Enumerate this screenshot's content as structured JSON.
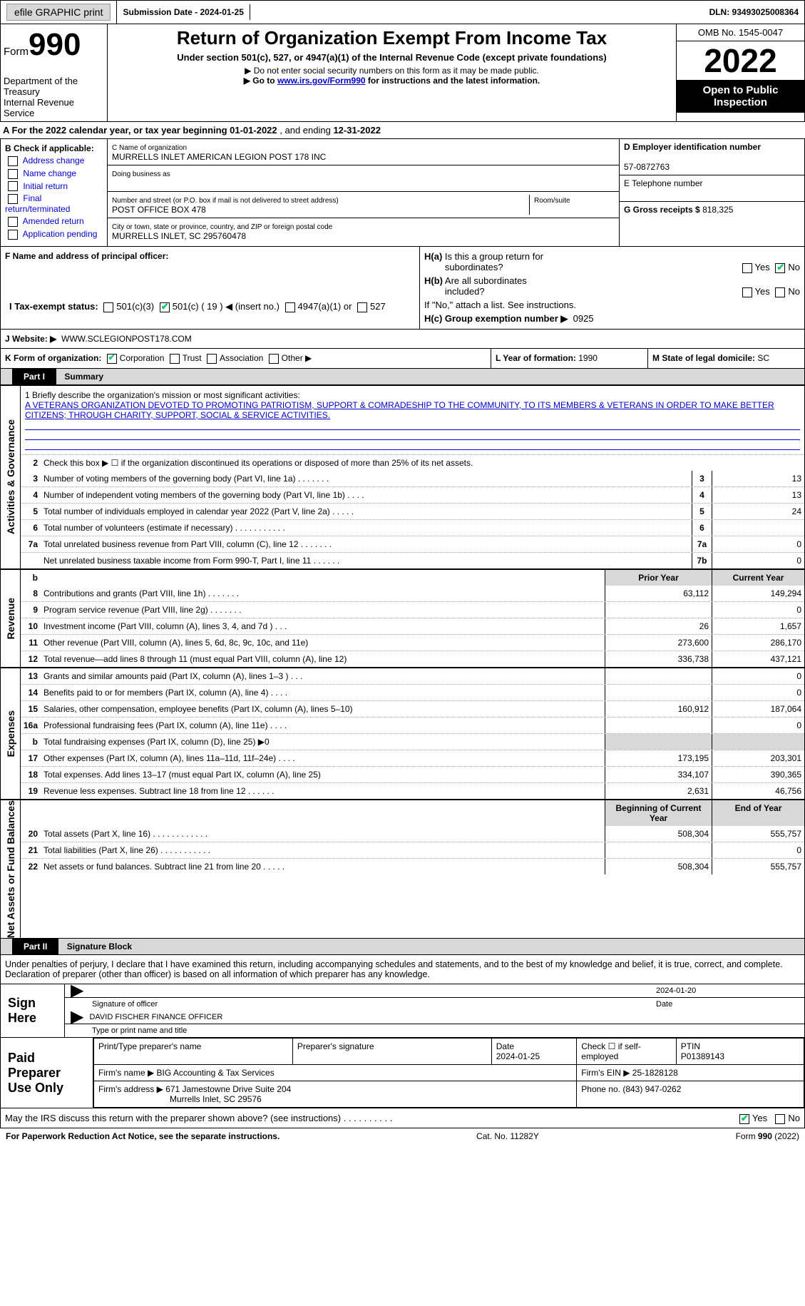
{
  "topbar": {
    "efile_label": "efile GRAPHIC print",
    "submission_label": "Submission Date - 2024-01-25",
    "dln": "DLN: 93493025008364"
  },
  "header": {
    "form_word": "Form",
    "form_number": "990",
    "dept": "Department of the Treasury",
    "agency": "Internal Revenue Service",
    "title": "Return of Organization Exempt From Income Tax",
    "subtitle": "Under section 501(c), 527, or 4947(a)(1) of the Internal Revenue Code (except private foundations)",
    "note1": "▶ Do not enter social security numbers on this form as it may be made public.",
    "note2_pre": "▶ Go to ",
    "note2_link": "www.irs.gov/Form990",
    "note2_post": " for instructions and the latest information.",
    "omb": "OMB No. 1545-0047",
    "year": "2022",
    "open1": "Open to Public",
    "open2": "Inspection"
  },
  "sectionA": {
    "text_pre": "A For the 2022 calendar year, or tax year beginning ",
    "begin": "01-01-2022",
    "mid": " , and ending ",
    "end": "12-31-2022"
  },
  "colB": {
    "label": "B Check if applicable:",
    "items": [
      "Address change",
      "Name change",
      "Initial return",
      "Final return/terminated",
      "Amended return",
      "Application pending"
    ]
  },
  "colC": {
    "name_label": "C Name of organization",
    "name": "MURRELLS INLET AMERICAN LEGION POST 178 INC",
    "dba_label": "Doing business as",
    "street_label": "Number and street (or P.O. box if mail is not delivered to street address)",
    "room_label": "Room/suite",
    "street": "POST OFFICE BOX 478",
    "city_label": "City or town, state or province, country, and ZIP or foreign postal code",
    "city": "MURRELLS INLET, SC  295760478"
  },
  "colD": {
    "ein_label": "D Employer identification number",
    "ein": "57-0872763",
    "tel_label": "E Telephone number",
    "gross_label": "G Gross receipts $ ",
    "gross": "818,325"
  },
  "rowF": {
    "label": "F Name and address of principal officer:"
  },
  "rowH": {
    "ha_label": "H(a)  Is this a group return for subordinates?",
    "hb_label": "H(b)  Are all subordinates included?",
    "hb_note": "If \"No,\" attach a list. See instructions.",
    "hc_label": "H(c)  Group exemption number ▶",
    "hc_val": "0925",
    "yes": "Yes",
    "no": "No"
  },
  "rowI": {
    "label": "I   Tax-exempt status:",
    "opt1": "501(c)(3)",
    "opt2": "501(c) ( 19 ) ◀ (insert no.)",
    "opt3": "4947(a)(1) or",
    "opt4": "527"
  },
  "rowJ": {
    "label": "J   Website: ▶",
    "value": "WWW.SCLEGIONPOST178.COM"
  },
  "rowK": {
    "label": "K Form of organization:",
    "opts": [
      "Corporation",
      "Trust",
      "Association",
      "Other ▶"
    ]
  },
  "rowL": {
    "label": "L Year of formation: ",
    "val": "1990"
  },
  "rowM": {
    "label": "M State of legal domicile: ",
    "val": "SC"
  },
  "part1": {
    "tag": "Part I",
    "title": "Summary"
  },
  "mission": {
    "q": "1   Briefly describe the organization's mission or most significant activities:",
    "text": "A VETERANS ORGANIZATION DEVOTED TO PROMOTING PATRIOTISM, SUPPORT & COMRADESHIP TO THE COMMUNITY, TO ITS MEMBERS & VETERANS IN ORDER TO MAKE BETTER CITIZENS; THROUGH CHARITY, SUPPORT, SOCIAL & SERVICE ACTIVITIES."
  },
  "line2": "Check this box ▶ ☐ if the organization discontinued its operations or disposed of more than 25% of its net assets.",
  "vert": {
    "gov": "Activities & Governance",
    "rev": "Revenue",
    "exp": "Expenses",
    "net": "Net Assets or Fund Balances"
  },
  "gov_lines": [
    {
      "n": "3",
      "t": "Number of voting members of the governing body (Part VI, line 1a)   .   .   .   .   .   .   .",
      "box": "3",
      "v": "13"
    },
    {
      "n": "4",
      "t": "Number of independent voting members of the governing body (Part VI, line 1b)   .   .   .   .",
      "box": "4",
      "v": "13"
    },
    {
      "n": "5",
      "t": "Total number of individuals employed in calendar year 2022 (Part V, line 2a)   .   .   .   .   .",
      "box": "5",
      "v": "24"
    },
    {
      "n": "6",
      "t": "Total number of volunteers (estimate if necessary)   .   .   .   .   .   .   .   .   .   .   .",
      "box": "6",
      "v": ""
    },
    {
      "n": "7a",
      "t": "Total unrelated business revenue from Part VIII, column (C), line 12   .   .   .   .   .   .   .",
      "box": "7a",
      "v": "0"
    },
    {
      "n": "  ",
      "t": "Net unrelated business taxable income from Form 990-T, Part I, line 11   .   .   .   .   .   .",
      "box": "7b",
      "v": "0"
    }
  ],
  "col_hdr": {
    "prior": "Prior Year",
    "current": "Current Year",
    "boy": "Beginning of Current Year",
    "eoy": "End of Year"
  },
  "rev_lines": [
    {
      "n": "8",
      "t": "Contributions and grants (Part VIII, line 1h)   .   .   .   .   .   .   .",
      "p": "63,112",
      "c": "149,294"
    },
    {
      "n": "9",
      "t": "Program service revenue (Part VIII, line 2g)   .   .   .   .   .   .   .",
      "p": "",
      "c": "0"
    },
    {
      "n": "10",
      "t": "Investment income (Part VIII, column (A), lines 3, 4, and 7d )   .   .   .",
      "p": "26",
      "c": "1,657"
    },
    {
      "n": "11",
      "t": "Other revenue (Part VIII, column (A), lines 5, 6d, 8c, 9c, 10c, and 11e)",
      "p": "273,600",
      "c": "286,170"
    },
    {
      "n": "12",
      "t": "Total revenue—add lines 8 through 11 (must equal Part VIII, column (A), line 12)",
      "p": "336,738",
      "c": "437,121"
    }
  ],
  "exp_lines": [
    {
      "n": "13",
      "t": "Grants and similar amounts paid (Part IX, column (A), lines 1–3 )   .   .   .",
      "p": "",
      "c": "0"
    },
    {
      "n": "14",
      "t": "Benefits paid to or for members (Part IX, column (A), line 4)   .   .   .   .",
      "p": "",
      "c": "0"
    },
    {
      "n": "15",
      "t": "Salaries, other compensation, employee benefits (Part IX, column (A), lines 5–10)",
      "p": "160,912",
      "c": "187,064"
    },
    {
      "n": "16a",
      "t": "Professional fundraising fees (Part IX, column (A), line 11e)   .   .   .   .",
      "p": "",
      "c": "0"
    },
    {
      "n": "b",
      "t": "Total fundraising expenses (Part IX, column (D), line 25) ▶0",
      "p": "__SHADE__",
      "c": "__SHADE__"
    },
    {
      "n": "17",
      "t": "Other expenses (Part IX, column (A), lines 11a–11d, 11f–24e)   .   .   .   .",
      "p": "173,195",
      "c": "203,301"
    },
    {
      "n": "18",
      "t": "Total expenses. Add lines 13–17 (must equal Part IX, column (A), line 25)",
      "p": "334,107",
      "c": "390,365"
    },
    {
      "n": "19",
      "t": "Revenue less expenses. Subtract line 18 from line 12   .   .   .   .   .   .",
      "p": "2,631",
      "c": "46,756"
    }
  ],
  "net_lines": [
    {
      "n": "20",
      "t": "Total assets (Part X, line 16)   .   .   .   .   .   .   .   .   .   .   .   .",
      "p": "508,304",
      "c": "555,757"
    },
    {
      "n": "21",
      "t": "Total liabilities (Part X, line 26)   .   .   .   .   .   .   .   .   .   .   .",
      "p": "",
      "c": "0"
    },
    {
      "n": "22",
      "t": "Net assets or fund balances. Subtract line 21 from line 20   .   .   .   .   .",
      "p": "508,304",
      "c": "555,757"
    }
  ],
  "part2": {
    "tag": "Part II",
    "title": "Signature Block"
  },
  "penalties": "Under penalties of perjury, I declare that I have examined this return, including accompanying schedules and statements, and to the best of my knowledge and belief, it is true, correct, and complete. Declaration of preparer (other than officer) is based on all information of which preparer has any knowledge.",
  "sign": {
    "label": "Sign Here",
    "sig_of_officer": "Signature of officer",
    "date": "Date",
    "date_val": "2024-01-20",
    "name": "DAVID FISCHER  FINANCE OFFICER",
    "type_label": "Type or print name and title"
  },
  "prep": {
    "label": "Paid Preparer Use Only",
    "print_label": "Print/Type preparer's name",
    "sig_label": "Preparer's signature",
    "date_label": "Date",
    "date_val": "2024-01-25",
    "check_label": "Check ☐ if self-employed",
    "ptin_label": "PTIN",
    "ptin": "P01389143",
    "firm_name_label": "Firm's name   ▶ ",
    "firm_name": "BIG Accounting & Tax Services",
    "firm_ein_label": "Firm's EIN ▶ ",
    "firm_ein": "25-1828128",
    "firm_addr_label": "Firm's address ▶ ",
    "firm_addr1": "671 Jamestowne Drive Suite 204",
    "firm_addr2": "Murrells Inlet, SC  29576",
    "phone_label": "Phone no. ",
    "phone": "(843) 947-0262"
  },
  "discuss": {
    "text": "May the IRS discuss this return with the preparer shown above? (see instructions)   .   .   .   .   .   .   .   .   .   .",
    "yes": "Yes",
    "no": "No"
  },
  "footer": {
    "left": "For Paperwork Reduction Act Notice, see the separate instructions.",
    "mid": "Cat. No. 11282Y",
    "right": "Form 990 (2022)"
  }
}
